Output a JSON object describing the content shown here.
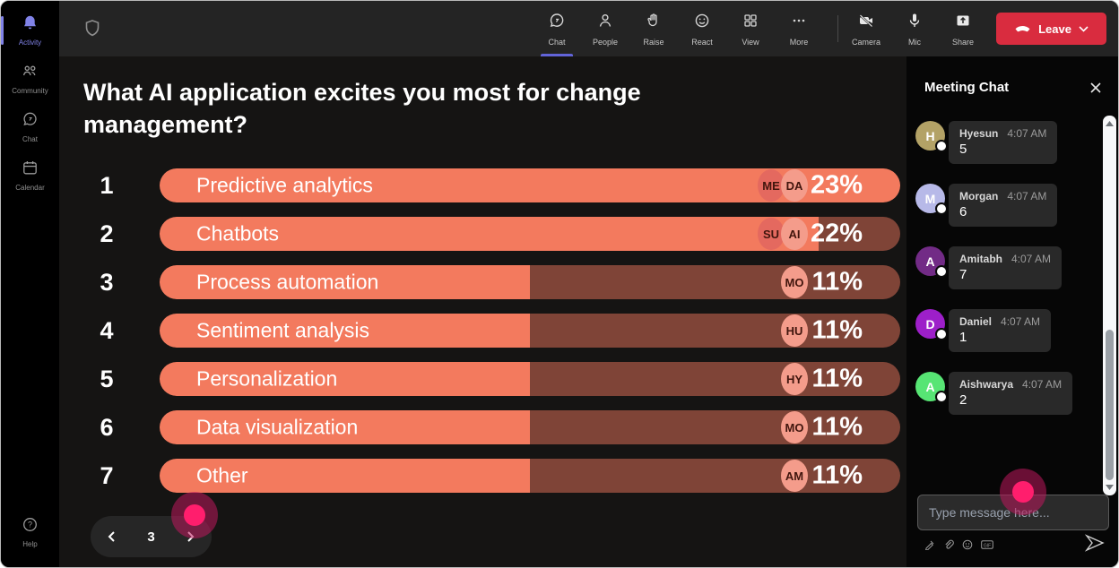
{
  "colors": {
    "accent": "#6264D9",
    "activity_purple": "#8183E8",
    "bar_fill": "#F37A5E",
    "bar_track": "#7F4437",
    "chip_front": "#F49C8B",
    "chip_behind": "#E4695F",
    "leave_red": "#D92C3F",
    "click_dot": "#FF1E6D"
  },
  "sidebar": {
    "items": [
      {
        "label": "Activity",
        "active": true
      },
      {
        "label": "Community",
        "active": false
      },
      {
        "label": "Chat",
        "active": false
      },
      {
        "label": "Calendar",
        "active": false
      }
    ],
    "help_label": "Help"
  },
  "toolbar": {
    "meeting_buttons": [
      {
        "label": "Chat",
        "active": true
      },
      {
        "label": "People",
        "active": false
      },
      {
        "label": "Raise",
        "active": false
      },
      {
        "label": "React",
        "active": false
      },
      {
        "label": "View",
        "active": false
      },
      {
        "label": "More",
        "active": false
      }
    ],
    "device_buttons": [
      {
        "label": "Camera"
      },
      {
        "label": "Mic"
      },
      {
        "label": "Share"
      }
    ],
    "leave_label": "Leave"
  },
  "poll": {
    "title": "What AI application excites you most for change management?",
    "page": "3",
    "options": [
      {
        "rank": "1",
        "label": "Predictive analytics",
        "pct": "23%",
        "fill_pct": 100,
        "voters": [
          "ME",
          "DA"
        ]
      },
      {
        "rank": "2",
        "label": "Chatbots",
        "pct": "22%",
        "fill_pct": 89,
        "voters": [
          "SU",
          "AI"
        ]
      },
      {
        "rank": "3",
        "label": "Process automation",
        "pct": "11%",
        "fill_pct": 50,
        "voters": [
          "MO"
        ]
      },
      {
        "rank": "4",
        "label": "Sentiment analysis",
        "pct": "11%",
        "fill_pct": 50,
        "voters": [
          "HU"
        ]
      },
      {
        "rank": "5",
        "label": "Personalization",
        "pct": "11%",
        "fill_pct": 50,
        "voters": [
          "HY"
        ]
      },
      {
        "rank": "6",
        "label": "Data visualization",
        "pct": "11%",
        "fill_pct": 50,
        "voters": [
          "MO"
        ]
      },
      {
        "rank": "7",
        "label": "Other",
        "pct": "11%",
        "fill_pct": 50,
        "voters": [
          "AM"
        ]
      }
    ]
  },
  "chat": {
    "title": "Meeting Chat",
    "messages": [
      {
        "initial": "H",
        "name": "Hyesun",
        "time": "4:07 AM",
        "text": "5",
        "avatar_color": "#B3A266"
      },
      {
        "initial": "M",
        "name": "Morgan",
        "time": "4:07 AM",
        "text": "6",
        "avatar_color": "#B7B9E8"
      },
      {
        "initial": "A",
        "name": "Amitabh",
        "time": "4:07 AM",
        "text": "7",
        "avatar_color": "#722B86"
      },
      {
        "initial": "D",
        "name": "Daniel",
        "time": "4:07 AM",
        "text": "1",
        "avatar_color": "#9D1FC9"
      },
      {
        "initial": "A",
        "name": "Aishwarya",
        "time": "4:07 AM",
        "text": "2",
        "avatar_color": "#57E574"
      }
    ],
    "input_placeholder": "Type message here..."
  }
}
